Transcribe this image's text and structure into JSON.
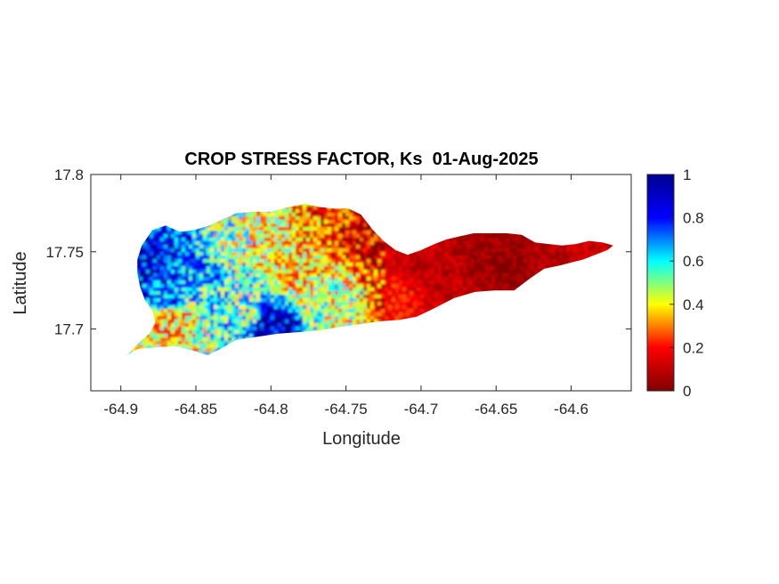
{
  "chart_data": {
    "type": "heatmap",
    "title": "CROP STRESS FACTOR, Ks  01-Aug-2025",
    "xlabel": "Longitude",
    "ylabel": "Latitude",
    "xlim": [
      -64.92,
      -64.56
    ],
    "ylim": [
      17.66,
      17.8
    ],
    "xticks": [
      -64.9,
      -64.85,
      -64.8,
      -64.75,
      -64.7,
      -64.65,
      -64.6
    ],
    "xtick_labels": [
      "-64.9",
      "-64.85",
      "-64.8",
      "-64.75",
      "-64.7",
      "-64.65",
      "-64.6"
    ],
    "yticks": [
      17.7,
      17.75,
      17.8
    ],
    "ytick_labels": [
      "17.7",
      "17.75",
      "17.8"
    ],
    "colorbar": {
      "colormap": "jet",
      "range": [
        0,
        1
      ],
      "ticks": [
        0,
        0.2,
        0.4,
        0.6,
        0.8,
        1
      ],
      "tick_labels": [
        "0",
        "0.2",
        "0.4",
        "0.6",
        "0.8",
        "1"
      ]
    },
    "colormap_stops": [
      "#00008f",
      "#0000ff",
      "#00ffff",
      "#ffff00",
      "#ff0000",
      "#800000"
    ],
    "grid": false,
    "region_outline": [
      [
        -64.9,
        17.679
      ],
      [
        -64.893,
        17.686
      ],
      [
        -64.887,
        17.692
      ],
      [
        -64.881,
        17.697
      ],
      [
        -64.877,
        17.704
      ],
      [
        -64.879,
        17.712
      ],
      [
        -64.884,
        17.719
      ],
      [
        -64.887,
        17.727
      ],
      [
        -64.889,
        17.736
      ],
      [
        -64.889,
        17.745
      ],
      [
        -64.886,
        17.754
      ],
      [
        -64.879,
        17.764
      ],
      [
        -64.87,
        17.767
      ],
      [
        -64.861,
        17.763
      ],
      [
        -64.851,
        17.764
      ],
      [
        -64.841,
        17.767
      ],
      [
        -64.832,
        17.771
      ],
      [
        -64.823,
        17.775
      ],
      [
        -64.812,
        17.776
      ],
      [
        -64.8,
        17.776
      ],
      [
        -64.788,
        17.779
      ],
      [
        -64.777,
        17.781
      ],
      [
        -64.768,
        17.779
      ],
      [
        -64.758,
        17.778
      ],
      [
        -64.748,
        17.778
      ],
      [
        -64.74,
        17.774
      ],
      [
        -64.732,
        17.764
      ],
      [
        -64.725,
        17.757
      ],
      [
        -64.717,
        17.751
      ],
      [
        -64.709,
        17.748
      ],
      [
        -64.7,
        17.751
      ],
      [
        -64.691,
        17.755
      ],
      [
        -64.683,
        17.758
      ],
      [
        -64.674,
        17.76
      ],
      [
        -64.665,
        17.762
      ],
      [
        -64.654,
        17.762
      ],
      [
        -64.643,
        17.762
      ],
      [
        -64.633,
        17.761
      ],
      [
        -64.624,
        17.756
      ],
      [
        -64.615,
        17.755
      ],
      [
        -64.606,
        17.754
      ],
      [
        -64.597,
        17.755
      ],
      [
        -64.588,
        17.757
      ],
      [
        -64.579,
        17.756
      ],
      [
        -64.572,
        17.754
      ],
      [
        -64.576,
        17.751
      ],
      [
        -64.584,
        17.748
      ],
      [
        -64.592,
        17.745
      ],
      [
        -64.6,
        17.743
      ],
      [
        -64.608,
        17.741
      ],
      [
        -64.618,
        17.739
      ],
      [
        -64.627,
        17.733
      ],
      [
        -64.638,
        17.725
      ],
      [
        -64.651,
        17.725
      ],
      [
        -64.664,
        17.724
      ],
      [
        -64.678,
        17.72
      ],
      [
        -64.692,
        17.713
      ],
      [
        -64.703,
        17.708
      ],
      [
        -64.714,
        17.706
      ],
      [
        -64.727,
        17.705
      ],
      [
        -64.742,
        17.703
      ],
      [
        -64.756,
        17.701
      ],
      [
        -64.768,
        17.699
      ],
      [
        -64.781,
        17.698
      ],
      [
        -64.795,
        17.697
      ],
      [
        -64.809,
        17.695
      ],
      [
        -64.823,
        17.693
      ],
      [
        -64.834,
        17.687
      ],
      [
        -64.842,
        17.683
      ],
      [
        -64.852,
        17.686
      ],
      [
        -64.864,
        17.689
      ],
      [
        -64.878,
        17.688
      ],
      [
        -64.889,
        17.687
      ],
      [
        -64.896,
        17.683
      ]
    ],
    "value_field_samples": [
      {
        "lon": -64.88,
        "lat": 17.745,
        "value": 0.88
      },
      {
        "lon": -64.87,
        "lat": 17.725,
        "value": 0.75
      },
      {
        "lon": -64.865,
        "lat": 17.705,
        "value": 0.35
      },
      {
        "lon": -64.85,
        "lat": 17.74,
        "value": 0.72
      },
      {
        "lon": -64.84,
        "lat": 17.72,
        "value": 0.6
      },
      {
        "lon": -64.83,
        "lat": 17.755,
        "value": 0.5
      },
      {
        "lon": -64.82,
        "lat": 17.71,
        "value": 0.55
      },
      {
        "lon": -64.8,
        "lat": 17.7,
        "value": 0.92
      },
      {
        "lon": -64.8,
        "lat": 17.76,
        "value": 0.4
      },
      {
        "lon": -64.78,
        "lat": 17.74,
        "value": 0.35
      },
      {
        "lon": -64.77,
        "lat": 17.77,
        "value": 0.25
      },
      {
        "lon": -64.76,
        "lat": 17.72,
        "value": 0.45
      },
      {
        "lon": -64.74,
        "lat": 17.76,
        "value": 0.12
      },
      {
        "lon": -64.72,
        "lat": 17.72,
        "value": 0.2
      },
      {
        "lon": -64.7,
        "lat": 17.745,
        "value": 0.1
      },
      {
        "lon": -64.68,
        "lat": 17.73,
        "value": 0.1
      },
      {
        "lon": -64.66,
        "lat": 17.745,
        "value": 0.05
      },
      {
        "lon": -64.64,
        "lat": 17.74,
        "value": 0.03
      },
      {
        "lon": -64.62,
        "lat": 17.745,
        "value": 0.08
      },
      {
        "lon": -64.59,
        "lat": 17.75,
        "value": 0.12
      }
    ]
  }
}
